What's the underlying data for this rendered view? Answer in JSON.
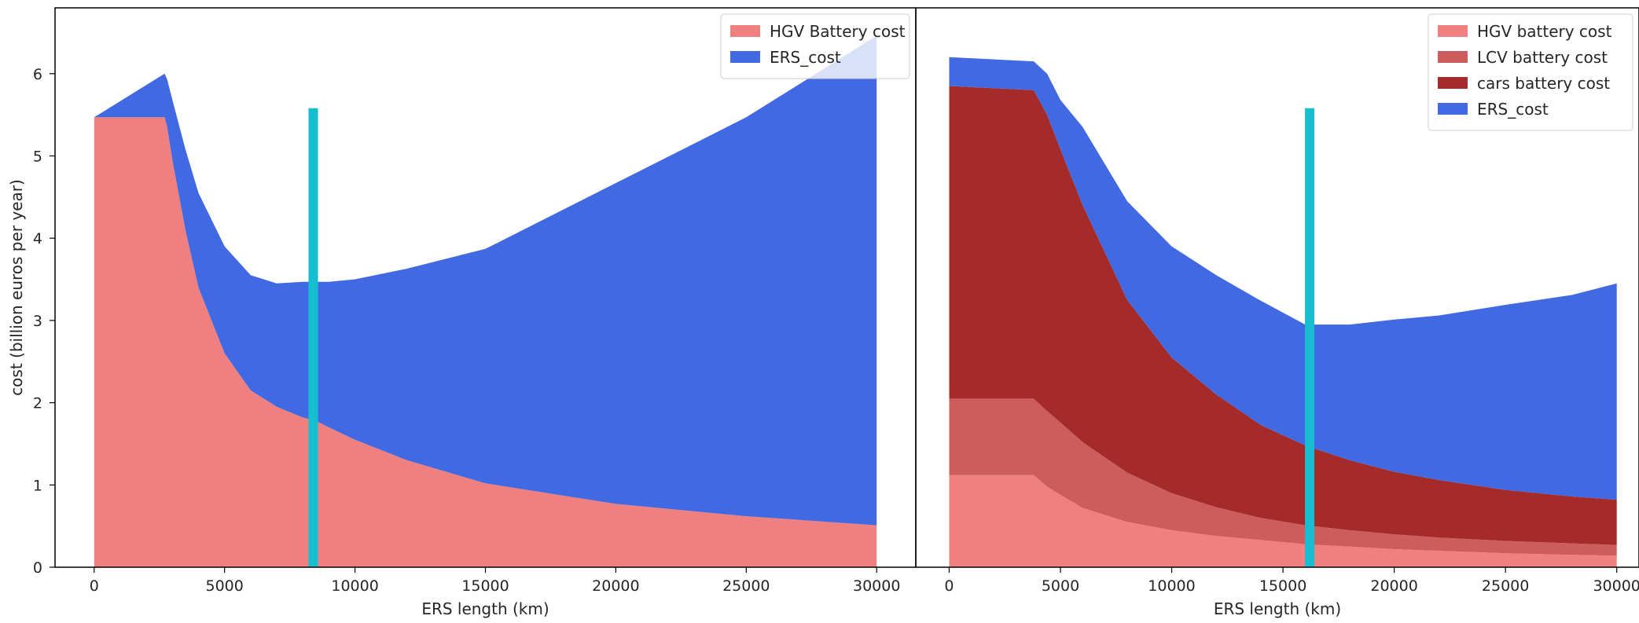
{
  "chart_data": [
    {
      "type": "area",
      "stacked": true,
      "xlabel": "ERS length (km)",
      "ylabel": "cost (billion euros per year)",
      "xlim": [
        -1500,
        31500
      ],
      "ylim": [
        0,
        6.8
      ],
      "x_ticks": [
        0,
        5000,
        10000,
        15000,
        20000,
        25000,
        30000
      ],
      "y_ticks": [
        0,
        1,
        2,
        3,
        4,
        5,
        6
      ],
      "legend_position": "top-right",
      "x": [
        0,
        2700,
        2800,
        3000,
        3500,
        4000,
        5000,
        6000,
        7000,
        8000,
        8500,
        9000,
        10000,
        12000,
        15000,
        20000,
        25000,
        30000
      ],
      "series": [
        {
          "name": "HGV Battery cost",
          "color": "#f08080",
          "values": [
            5.47,
            5.47,
            5.35,
            4.95,
            4.1,
            3.4,
            2.6,
            2.15,
            1.95,
            1.82,
            1.78,
            1.7,
            1.55,
            1.3,
            1.02,
            0.77,
            0.62,
            0.51
          ]
        },
        {
          "name": "ERS_cost",
          "color": "#4169e1",
          "values": [
            0.0,
            0.53,
            0.58,
            0.73,
            0.98,
            1.15,
            1.3,
            1.4,
            1.5,
            1.65,
            1.69,
            1.77,
            1.95,
            2.33,
            2.85,
            3.9,
            4.85,
            5.95
          ]
        }
      ],
      "vertical_marker": {
        "x": 8400,
        "y_top": 5.58,
        "color": "#17becf"
      }
    },
    {
      "type": "area",
      "stacked": true,
      "xlabel": "ERS length (km)",
      "ylabel": "",
      "xlim": [
        -1500,
        31000
      ],
      "ylim": [
        0,
        6.8
      ],
      "x_ticks": [
        0,
        5000,
        10000,
        15000,
        20000,
        25000,
        30000
      ],
      "y_ticks": [],
      "legend_position": "top-right",
      "x": [
        0,
        3800,
        4400,
        5000,
        6000,
        8000,
        10000,
        12000,
        14000,
        16000,
        18000,
        20000,
        22000,
        25000,
        28000,
        30000
      ],
      "series": [
        {
          "name": "HGV battery cost",
          "color": "#f08080",
          "values": [
            1.12,
            1.12,
            0.98,
            0.88,
            0.72,
            0.55,
            0.45,
            0.38,
            0.33,
            0.28,
            0.25,
            0.22,
            0.2,
            0.17,
            0.15,
            0.14
          ]
        },
        {
          "name": "LCV battery cost",
          "color": "#cd5c5c",
          "values": [
            0.93,
            0.93,
            0.92,
            0.88,
            0.8,
            0.6,
            0.45,
            0.35,
            0.27,
            0.23,
            0.2,
            0.18,
            0.16,
            0.15,
            0.14,
            0.13
          ]
        },
        {
          "name": "cars battery cost",
          "color": "#a52a2a",
          "values": [
            3.8,
            3.75,
            3.6,
            3.32,
            2.88,
            2.1,
            1.65,
            1.37,
            1.13,
            0.97,
            0.85,
            0.76,
            0.7,
            0.62,
            0.57,
            0.55
          ]
        },
        {
          "name": "ERS_cost",
          "color": "#4169e1",
          "values": [
            0.35,
            0.35,
            0.5,
            0.6,
            0.95,
            1.2,
            1.35,
            1.45,
            1.51,
            1.47,
            1.65,
            1.85,
            2.0,
            2.25,
            2.45,
            2.63
          ]
        }
      ],
      "vertical_marker": {
        "x": 16200,
        "y_top": 5.58,
        "color": "#17becf"
      }
    }
  ]
}
